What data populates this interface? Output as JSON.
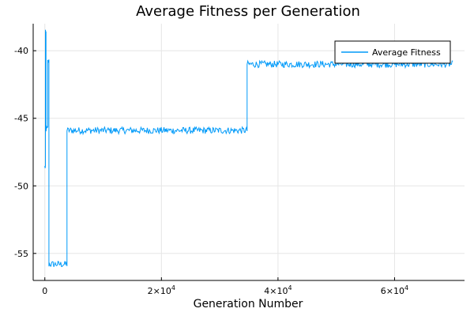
{
  "chart_data": {
    "type": "line",
    "title": "Average Fitness per Generation",
    "xlabel": "Generation Number",
    "ylabel": "",
    "xlim": [
      -2000,
      72000
    ],
    "ylim": [
      -57,
      -38
    ],
    "grid": true,
    "legend_placement": "top-right",
    "x_ticks": [
      {
        "value": 0,
        "label": "0",
        "exp": ""
      },
      {
        "value": 20000,
        "label": "2×10",
        "exp": "4"
      },
      {
        "value": 40000,
        "label": "4×10",
        "exp": "4"
      },
      {
        "value": 60000,
        "label": "6×10",
        "exp": "4"
      }
    ],
    "y_ticks": [
      {
        "value": -40,
        "label": "-40"
      },
      {
        "value": -45,
        "label": "-45"
      },
      {
        "value": -50,
        "label": "-50"
      },
      {
        "value": -55,
        "label": "-55"
      }
    ],
    "series": [
      {
        "name": "Average Fitness",
        "color": "#009af9",
        "noise": 0.25,
        "segments": [
          {
            "x0": 0,
            "x1": 100,
            "y": -48.6
          },
          {
            "x0": 100,
            "x1": 200,
            "y": -38.7
          },
          {
            "x0": 200,
            "x1": 500,
            "y": -45.8
          },
          {
            "x0": 500,
            "x1": 700,
            "y": -40.8
          },
          {
            "x0": 700,
            "x1": 3800,
            "y": -55.8
          },
          {
            "x0": 3800,
            "x1": 34700,
            "y": -45.9
          },
          {
            "x0": 34700,
            "x1": 70000,
            "y": -41.0
          }
        ]
      }
    ]
  }
}
